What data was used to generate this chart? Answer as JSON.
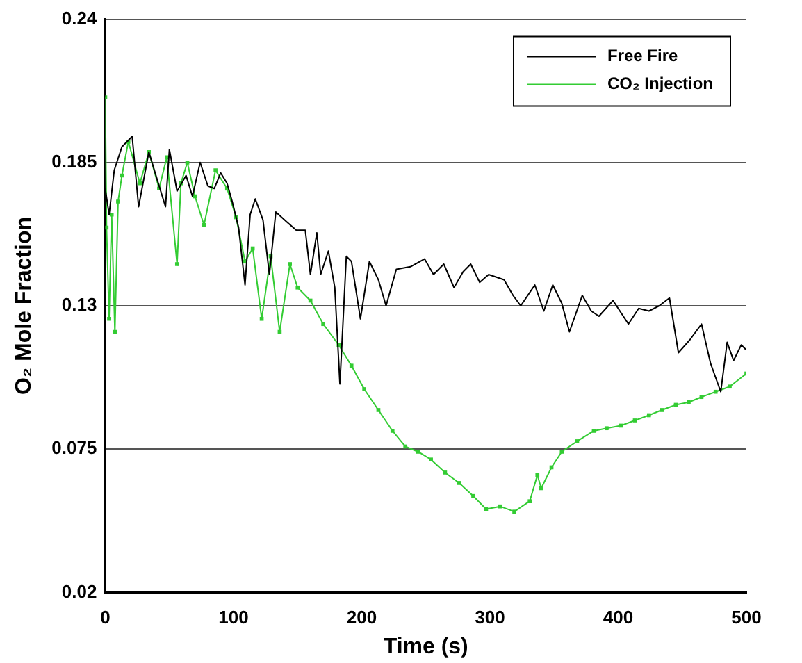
{
  "chart_data": {
    "type": "line",
    "xlabel": "Time (s)",
    "ylabel": "O₂ Mole Fraction",
    "xlim": [
      0,
      500
    ],
    "xticks": [
      0,
      100,
      200,
      300,
      400,
      500
    ],
    "ylim": [
      0.02,
      0.24
    ],
    "yticks": [
      0.02,
      0.075,
      0.13,
      0.185,
      0.24
    ],
    "grid": "y",
    "legend": "top right",
    "line_style": "solid",
    "series": [
      {
        "name": "Free Fire",
        "color": "#000000",
        "marker": "none",
        "x": [
          0,
          3,
          7,
          13,
          21,
          26,
          34,
          42,
          47,
          50,
          56,
          63,
          68,
          74,
          80,
          85,
          90,
          95,
          99,
          104,
          109,
          113,
          117,
          123,
          128,
          133,
          142,
          149,
          156,
          160,
          165,
          168,
          174,
          179,
          183,
          188,
          192,
          199,
          206,
          213,
          219,
          227,
          238,
          249,
          256,
          264,
          272,
          279,
          285,
          292,
          299,
          311,
          318,
          324,
          335,
          342,
          349,
          356,
          362,
          372,
          379,
          385,
          396,
          408,
          416,
          424,
          432,
          440,
          447,
          456,
          465,
          472,
          480,
          485,
          490,
          496,
          500
        ],
        "values": [
          0.175,
          0.165,
          0.182,
          0.191,
          0.195,
          0.168,
          0.189,
          0.176,
          0.168,
          0.19,
          0.174,
          0.18,
          0.172,
          0.185,
          0.176,
          0.175,
          0.181,
          0.177,
          0.17,
          0.16,
          0.138,
          0.165,
          0.171,
          0.163,
          0.142,
          0.166,
          0.162,
          0.159,
          0.159,
          0.142,
          0.158,
          0.142,
          0.151,
          0.137,
          0.1,
          0.149,
          0.147,
          0.125,
          0.147,
          0.14,
          0.13,
          0.144,
          0.145,
          0.148,
          0.142,
          0.146,
          0.137,
          0.143,
          0.146,
          0.139,
          0.142,
          0.14,
          0.134,
          0.13,
          0.138,
          0.128,
          0.138,
          0.131,
          0.12,
          0.134,
          0.128,
          0.126,
          0.132,
          0.123,
          0.129,
          0.128,
          0.13,
          0.133,
          0.112,
          0.117,
          0.123,
          0.108,
          0.097,
          0.116,
          0.109,
          0.115,
          0.113
        ]
      },
      {
        "name": "CO₂ Injection",
        "color": "#33cc33",
        "marker": "square",
        "x": [
          0,
          1,
          3,
          5,
          7.5,
          10,
          13,
          18,
          27,
          34,
          42,
          48,
          56,
          59,
          64,
          70,
          77,
          86,
          95,
          102,
          109,
          115,
          122,
          129,
          136,
          144,
          150,
          160,
          170,
          182,
          192,
          202,
          213,
          224,
          234,
          244,
          254,
          265,
          276,
          287,
          297,
          308,
          319,
          331,
          337,
          340,
          348,
          356,
          368,
          381,
          391,
          402,
          413,
          424,
          434,
          445,
          455,
          465,
          476,
          487,
          500
        ],
        "values": [
          0.21,
          0.16,
          0.125,
          0.165,
          0.12,
          0.17,
          0.18,
          0.193,
          0.177,
          0.189,
          0.175,
          0.187,
          0.146,
          0.177,
          0.185,
          0.172,
          0.161,
          0.182,
          0.175,
          0.164,
          0.147,
          0.152,
          0.125,
          0.149,
          0.12,
          0.146,
          0.137,
          0.132,
          0.123,
          0.115,
          0.107,
          0.098,
          0.09,
          0.082,
          0.076,
          0.074,
          0.071,
          0.066,
          0.062,
          0.057,
          0.052,
          0.053,
          0.051,
          0.055,
          0.065,
          0.06,
          0.068,
          0.074,
          0.078,
          0.082,
          0.083,
          0.084,
          0.086,
          0.088,
          0.09,
          0.092,
          0.093,
          0.095,
          0.097,
          0.099,
          0.104
        ]
      }
    ]
  }
}
